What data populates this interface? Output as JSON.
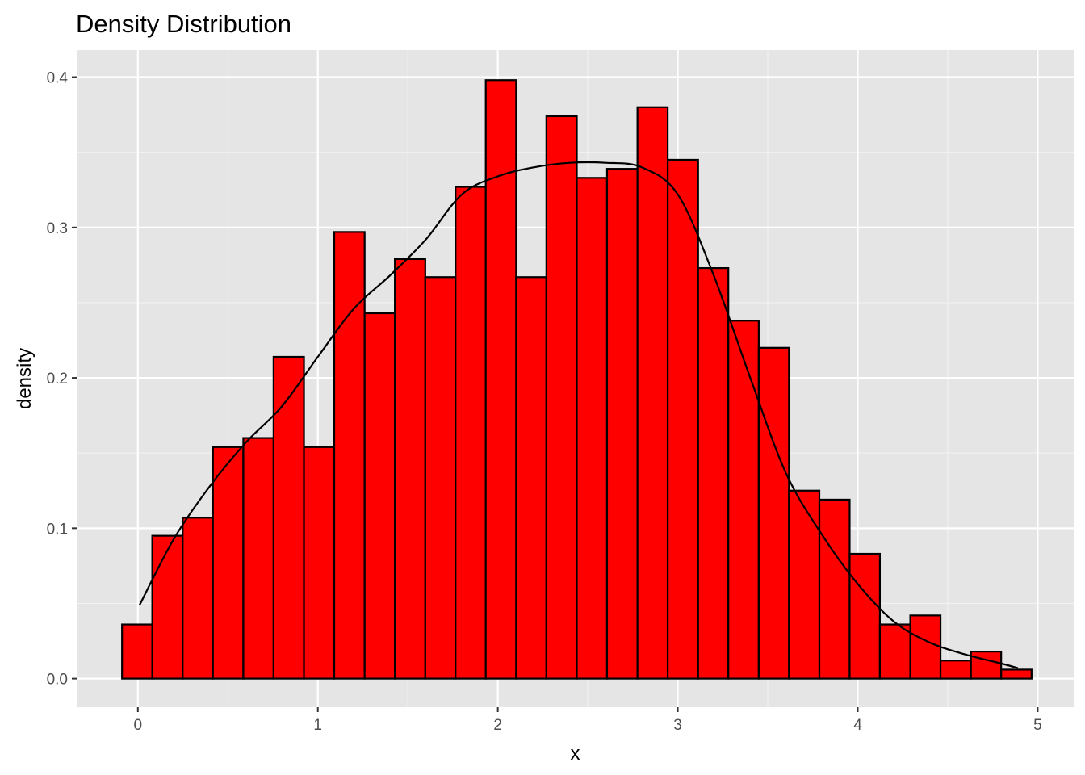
{
  "chart_data": {
    "type": "bar",
    "subtype": "histogram-with-density",
    "title": "Density Distribution",
    "xlabel": "x",
    "ylabel": "density",
    "xlim": [
      -0.34,
      5.2
    ],
    "ylim": [
      -0.019,
      0.418
    ],
    "x_ticks": [
      0,
      1,
      2,
      3,
      4,
      5
    ],
    "x_tick_labels": [
      "0",
      "1",
      "2",
      "3",
      "4",
      "5"
    ],
    "y_ticks": [
      0.0,
      0.1,
      0.2,
      0.3,
      0.4
    ],
    "y_tick_labels": [
      "0.0",
      "0.1",
      "0.2",
      "0.3",
      "0.4"
    ],
    "grid": true,
    "legend": "none",
    "bin_width": 0.1684,
    "bin_edges": [
      -0.088,
      0.08,
      0.249,
      0.417,
      0.586,
      0.754,
      0.923,
      1.091,
      1.26,
      1.428,
      1.597,
      1.765,
      1.933,
      2.102,
      2.27,
      2.439,
      2.607,
      2.776,
      2.944,
      3.113,
      3.281,
      3.45,
      3.618,
      3.787,
      3.955,
      4.123,
      4.292,
      4.46,
      4.629,
      4.797,
      4.966
    ],
    "values": [
      0.036,
      0.095,
      0.107,
      0.154,
      0.16,
      0.214,
      0.154,
      0.297,
      0.243,
      0.279,
      0.267,
      0.327,
      0.398,
      0.267,
      0.374,
      0.333,
      0.339,
      0.38,
      0.345,
      0.273,
      0.238,
      0.22,
      0.125,
      0.119,
      0.083,
      0.036,
      0.042,
      0.012,
      0.018,
      0.006
    ],
    "density_curve": {
      "x": [
        0.01,
        0.2,
        0.4,
        0.6,
        0.8,
        1.0,
        1.2,
        1.4,
        1.6,
        1.8,
        2.0,
        2.2,
        2.4,
        2.6,
        2.8,
        3.0,
        3.2,
        3.4,
        3.6,
        3.8,
        4.0,
        4.2,
        4.4,
        4.6,
        4.8,
        4.89
      ],
      "y": [
        0.049,
        0.093,
        0.128,
        0.157,
        0.181,
        0.214,
        0.246,
        0.268,
        0.292,
        0.322,
        0.334,
        0.34,
        0.343,
        0.343,
        0.34,
        0.322,
        0.268,
        0.201,
        0.137,
        0.096,
        0.063,
        0.038,
        0.024,
        0.016,
        0.01,
        0.007
      ]
    },
    "colors": {
      "bar_fill": "#ff0000",
      "bar_stroke": "#000000",
      "curve": "#000000",
      "panel_background": "#e5e5e5",
      "grid_major": "#ffffff",
      "grid_minor": "#f2f2f2",
      "tick_label": "#4d4d4d",
      "tick_mark": "#333333"
    }
  }
}
